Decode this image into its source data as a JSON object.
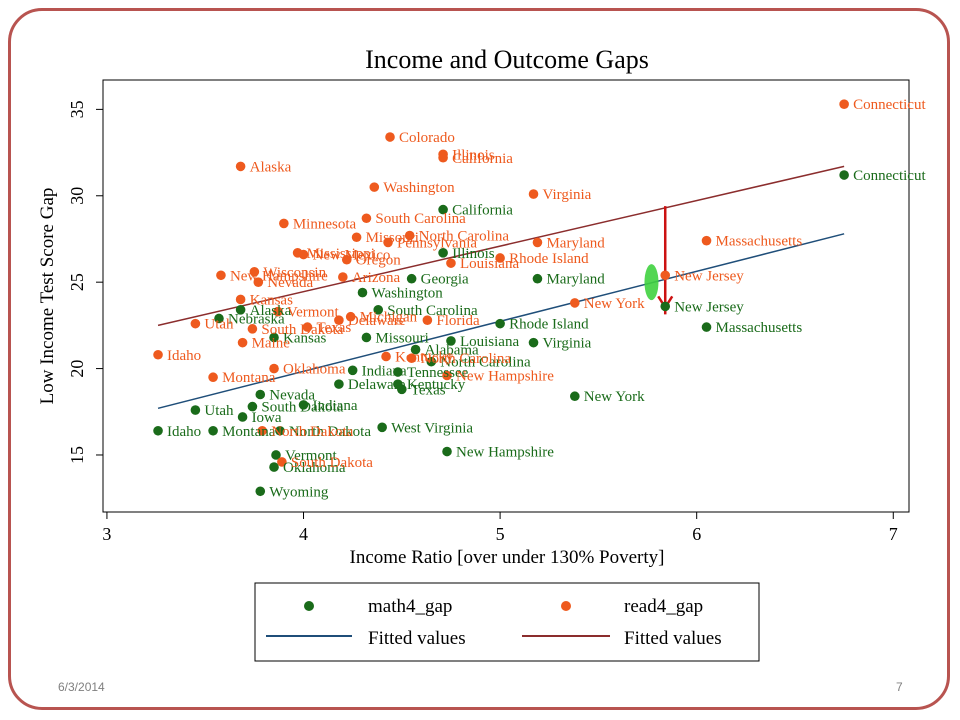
{
  "footer": {
    "date": "6/3/2014",
    "page_number": "7"
  },
  "colors": {
    "math": "#1a6b1a",
    "read": "#ee5a1e",
    "math_fit": "#1f4e79",
    "read_fit": "#8b2d2d",
    "frame": "#b85450",
    "arrow": "#cc1111",
    "highlight": "#3fd13f"
  },
  "chart_data": {
    "type": "scatter",
    "title": "Income and Outcome Gaps",
    "xlabel": "Income Ratio [over under 130% Poverty]",
    "ylabel": "Low Income Test Score Gap",
    "xlim": [
      2.98,
      7.08
    ],
    "ylim": [
      11.7,
      36.7
    ],
    "xticks": [
      3,
      4,
      5,
      6,
      7
    ],
    "yticks": [
      15,
      20,
      25,
      30,
      35
    ],
    "grid": false,
    "legend": {
      "placement": "bottom",
      "entries": [
        {
          "label": "math4_gap",
          "kind": "marker",
          "series": "math"
        },
        {
          "label": "read4_gap",
          "kind": "marker",
          "series": "read"
        },
        {
          "label": "Fitted values",
          "kind": "line",
          "series": "math_fit"
        },
        {
          "label": "Fitted values",
          "kind": "line",
          "series": "read_fit"
        }
      ]
    },
    "fits": [
      {
        "name": "math_fit",
        "x": [
          3.26,
          6.75
        ],
        "y": [
          17.7,
          27.8
        ]
      },
      {
        "name": "read_fit",
        "x": [
          3.26,
          6.75
        ],
        "y": [
          22.5,
          31.7
        ]
      }
    ],
    "annotation": {
      "label": "arrow",
      "x": 5.84,
      "y_from": 29.4,
      "y_to": 23.6
    },
    "series": [
      {
        "name": "math4_gap",
        "color_key": "math",
        "points": [
          {
            "label": "Connecticut",
            "x": 6.75,
            "y": 31.2
          },
          {
            "label": "California",
            "x": 4.71,
            "y": 29.2
          },
          {
            "label": "Massachusetts",
            "x": 6.05,
            "y": 22.4
          },
          {
            "label": "New Jersey",
            "x": 5.84,
            "y": 23.6
          },
          {
            "label": "Maryland",
            "x": 5.19,
            "y": 25.2
          },
          {
            "label": "Rhode Island",
            "x": 5.0,
            "y": 22.6
          },
          {
            "label": "Virginia",
            "x": 5.17,
            "y": 21.5
          },
          {
            "label": "New York",
            "x": 5.38,
            "y": 18.4
          },
          {
            "label": "New Hampshire",
            "x": 4.73,
            "y": 15.2
          },
          {
            "label": "West Virginia",
            "x": 4.4,
            "y": 16.6
          },
          {
            "label": "Illinois",
            "x": 4.71,
            "y": 26.7
          },
          {
            "label": "Georgia",
            "x": 4.55,
            "y": 25.2
          },
          {
            "label": "Washington",
            "x": 4.3,
            "y": 24.4
          },
          {
            "label": "South Carolina",
            "x": 4.38,
            "y": 23.4
          },
          {
            "label": "Louisiana",
            "x": 4.75,
            "y": 21.6
          },
          {
            "label": "Alabama",
            "x": 4.57,
            "y": 21.1
          },
          {
            "label": "Missouri",
            "x": 4.32,
            "y": 21.8
          },
          {
            "label": "North Carolina",
            "x": 4.65,
            "y": 20.4
          },
          {
            "label": "Tennessee",
            "x": 4.48,
            "y": 19.8
          },
          {
            "label": "Delaware",
            "x": 4.18,
            "y": 19.1
          },
          {
            "label": "Kentucky",
            "x": 4.48,
            "y": 19.1
          },
          {
            "label": "Texas",
            "x": 4.5,
            "y": 18.8
          },
          {
            "label": "Indiana",
            "x": 4.25,
            "y": 19.9
          },
          {
            "label": "Alaska",
            "x": 3.68,
            "y": 23.4
          },
          {
            "label": "Nebraska",
            "x": 3.57,
            "y": 22.9
          },
          {
            "label": "Kansas",
            "x": 3.85,
            "y": 21.8
          },
          {
            "label": "Nevada",
            "x": 3.78,
            "y": 18.5
          },
          {
            "label": "South Dakota",
            "x": 3.74,
            "y": 17.8
          },
          {
            "label": "Utah",
            "x": 3.45,
            "y": 17.6
          },
          {
            "label": "Iowa",
            "x": 3.69,
            "y": 17.2
          },
          {
            "label": "Indiana",
            "x": 4.0,
            "y": 17.9
          },
          {
            "label": "Idaho",
            "x": 3.26,
            "y": 16.4
          },
          {
            "label": "Montana",
            "x": 3.54,
            "y": 16.4
          },
          {
            "label": "North Dakota",
            "x": 3.88,
            "y": 16.4
          },
          {
            "label": "Vermont",
            "x": 3.86,
            "y": 15.0
          },
          {
            "label": "Oklahoma",
            "x": 3.85,
            "y": 14.3
          },
          {
            "label": "Wyoming",
            "x": 3.78,
            "y": 12.9
          }
        ]
      },
      {
        "name": "read4_gap",
        "color_key": "read",
        "points": [
          {
            "label": "Connecticut",
            "x": 6.75,
            "y": 35.3
          },
          {
            "label": "Colorado",
            "x": 4.44,
            "y": 33.4
          },
          {
            "label": "Illinois",
            "x": 4.71,
            "y": 32.4
          },
          {
            "label": "California",
            "x": 4.71,
            "y": 32.2
          },
          {
            "label": "Alaska",
            "x": 3.68,
            "y": 31.7
          },
          {
            "label": "Washington",
            "x": 4.36,
            "y": 30.5
          },
          {
            "label": "Virginia",
            "x": 5.17,
            "y": 30.1
          },
          {
            "label": "Minnesota",
            "x": 3.9,
            "y": 28.4
          },
          {
            "label": "South Carolina",
            "x": 4.32,
            "y": 28.7
          },
          {
            "label": "North Carolina",
            "x": 4.54,
            "y": 27.7
          },
          {
            "label": "Pennsylvania",
            "x": 4.43,
            "y": 27.3
          },
          {
            "label": "Missouri",
            "x": 4.27,
            "y": 27.6
          },
          {
            "label": "Mississippi",
            "x": 3.97,
            "y": 26.7
          },
          {
            "label": "New Mexico",
            "x": 4.0,
            "y": 26.6
          },
          {
            "label": "Maryland",
            "x": 5.19,
            "y": 27.3
          },
          {
            "label": "Rhode Island",
            "x": 5.0,
            "y": 26.4
          },
          {
            "label": "Louisiana",
            "x": 4.75,
            "y": 26.1
          },
          {
            "label": "Oregon",
            "x": 4.22,
            "y": 26.3
          },
          {
            "label": "Arizona",
            "x": 4.2,
            "y": 25.3
          },
          {
            "label": "Massachusetts",
            "x": 6.05,
            "y": 27.4
          },
          {
            "label": "New Jersey",
            "x": 5.84,
            "y": 25.4
          },
          {
            "label": "New York",
            "x": 5.38,
            "y": 23.8
          },
          {
            "label": "Wisconsin",
            "x": 3.75,
            "y": 25.6
          },
          {
            "label": "New Hampshire",
            "x": 3.58,
            "y": 25.4
          },
          {
            "label": "Nevada",
            "x": 3.77,
            "y": 25.0
          },
          {
            "label": "Kansas",
            "x": 3.68,
            "y": 24.0
          },
          {
            "label": "Vermont",
            "x": 3.87,
            "y": 23.3
          },
          {
            "label": "Michigan",
            "x": 4.24,
            "y": 23.0
          },
          {
            "label": "Delaware",
            "x": 4.18,
            "y": 22.8
          },
          {
            "label": "Florida",
            "x": 4.63,
            "y": 22.8
          },
          {
            "label": "Utah",
            "x": 3.45,
            "y": 22.6
          },
          {
            "label": "South Dakota",
            "x": 3.74,
            "y": 22.3
          },
          {
            "label": "Texas",
            "x": 4.02,
            "y": 22.4
          },
          {
            "label": "Maine",
            "x": 3.69,
            "y": 21.5
          },
          {
            "label": "Idaho",
            "x": 3.26,
            "y": 20.8
          },
          {
            "label": "Oklahoma",
            "x": 3.85,
            "y": 20.0
          },
          {
            "label": "Kentucky",
            "x": 4.42,
            "y": 20.7
          },
          {
            "label": "North Carolina",
            "x": 4.55,
            "y": 20.6
          },
          {
            "label": "New Hampshire",
            "x": 4.73,
            "y": 19.6
          },
          {
            "label": "Montana",
            "x": 3.54,
            "y": 19.5
          },
          {
            "label": "North Dakota",
            "x": 3.79,
            "y": 16.4
          },
          {
            "label": "South Dakota",
            "x": 3.89,
            "y": 14.6
          }
        ]
      }
    ]
  }
}
